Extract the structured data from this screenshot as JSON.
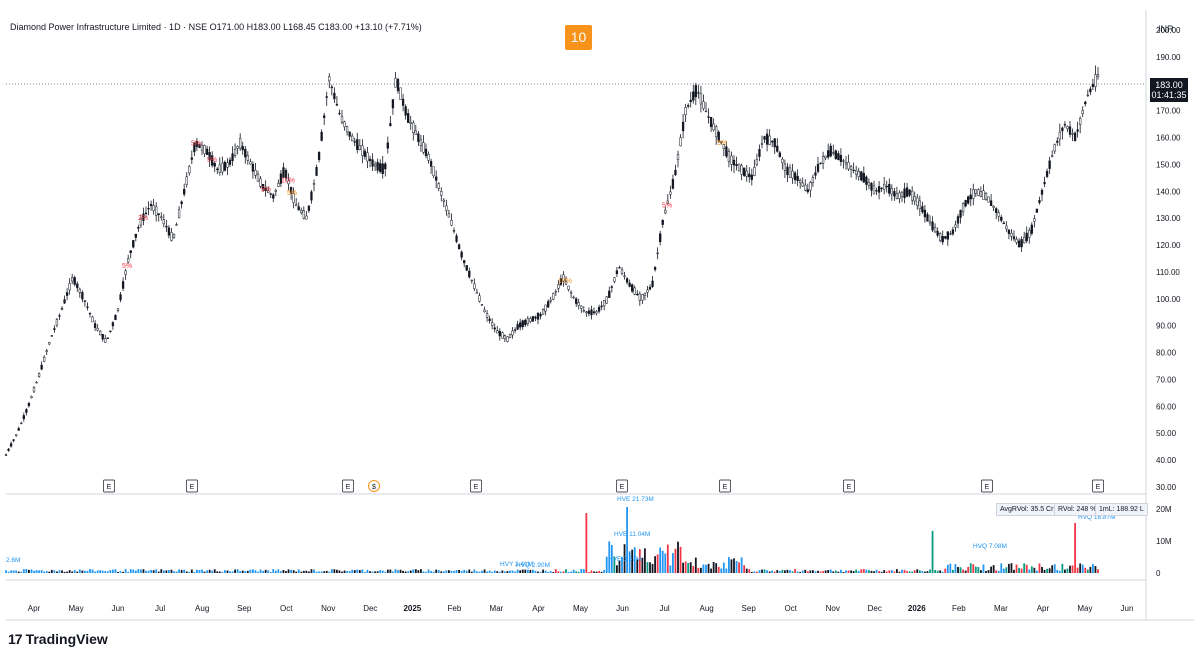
{
  "header": {
    "symbol_line": "Diamond Power Infrastructure Limited · 1D · NSE",
    "ohlc": "O171.00  H183.00  L168.45  C183.00  +13.10 (+7.71%)",
    "badge": "10",
    "currency": "INR",
    "last_price": "183.00",
    "countdown": "01:41:35"
  },
  "brand": {
    "name": "TradingView"
  },
  "stats": {
    "avg_vol": "AvgRVol: 35.5 Cr",
    "rvol": "RVol: 248 %",
    "ml": "1mL: 188.92 L"
  },
  "colors": {
    "candle": "#131722",
    "vol_blue": "#2196f3",
    "vol_red": "#f23645",
    "vol_green": "#089981",
    "accent": "#f7931a",
    "vol_black": "#131722"
  },
  "chart_data": {
    "type": "candlestick",
    "y_ticks": [
      30,
      40,
      50,
      60,
      70,
      80,
      90,
      100,
      110,
      120,
      130,
      140,
      150,
      160,
      170,
      180,
      190,
      200
    ],
    "ylim": [
      30,
      200
    ],
    "vol_ticks": [
      "0",
      "10M",
      "20M"
    ],
    "x_labels": [
      "Apr",
      "May",
      "Jun",
      "Jul",
      "Aug",
      "Sep",
      "Oct",
      "Nov",
      "Dec",
      "2025",
      "Feb",
      "Mar",
      "Apr",
      "May",
      "Jun",
      "Jul",
      "Aug",
      "Sep",
      "Oct",
      "Nov",
      "Dec",
      "2026",
      "Feb",
      "Mar",
      "Apr",
      "May",
      "Jun"
    ],
    "price_path": [
      42,
      50,
      60,
      72,
      85,
      96,
      108,
      100,
      90,
      84,
      95,
      115,
      128,
      135,
      130,
      122,
      140,
      158,
      155,
      148,
      150,
      158,
      150,
      142,
      138,
      148,
      135,
      130,
      150,
      182,
      168,
      160,
      155,
      150,
      148,
      182,
      168,
      160,
      152,
      140,
      128,
      115,
      105,
      95,
      88,
      85,
      90,
      92,
      94,
      100,
      108,
      100,
      95,
      95,
      100,
      112,
      105,
      100,
      105,
      130,
      145,
      170,
      178,
      168,
      160,
      152,
      148,
      145,
      160,
      158,
      148,
      145,
      140,
      150,
      155,
      152,
      148,
      145,
      140,
      142,
      138,
      140,
      135,
      128,
      122,
      125,
      135,
      140,
      138,
      132,
      125,
      120,
      125,
      140,
      155,
      165,
      160,
      175,
      183
    ],
    "event_markers": [
      "E",
      "E",
      "E",
      "$",
      "E",
      "E",
      "E",
      "E",
      "E",
      "E"
    ],
    "vol_annotations": [
      {
        "text": "HVE 21.73M"
      },
      {
        "text": "HVE 11.04M"
      },
      {
        "text": "HVE 3.67M"
      },
      {
        "text": "HVY 2.41M"
      },
      {
        "text": "HVQ 7.08M"
      },
      {
        "text": "HVQ 16.87M"
      },
      {
        "text": "HVQ 2.90M"
      },
      {
        "text": "2.6M"
      }
    ],
    "pct_labels": [
      "5%",
      "2%",
      "5%",
      "5%",
      "5%",
      "10%",
      "5%",
      "5%",
      "10%",
      "5%"
    ]
  }
}
